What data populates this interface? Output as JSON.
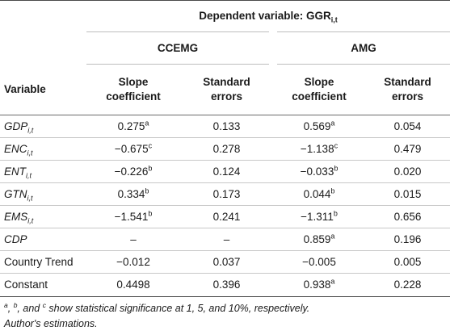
{
  "header": {
    "dependent_label": "Dependent variable: GGR",
    "dependent_sub": "i,t",
    "methods": [
      "CCEMG",
      "AMG"
    ],
    "variable_label": "Variable",
    "col_slope": [
      "Slope",
      "coefficient"
    ],
    "col_se": [
      "Standard",
      "errors"
    ]
  },
  "rows": [
    {
      "name": "GDP",
      "sub": "i,t",
      "italic": true,
      "cc_slope": "0.275",
      "cc_slope_sup": "a",
      "cc_se": "0.133",
      "amg_slope": "0.569",
      "amg_slope_sup": "a",
      "amg_se": "0.054"
    },
    {
      "name": "ENC",
      "sub": "i,t",
      "italic": true,
      "cc_slope": "−0.675",
      "cc_slope_sup": "c",
      "cc_se": "0.278",
      "amg_slope": "−1.138",
      "amg_slope_sup": "c",
      "amg_se": "0.479"
    },
    {
      "name": "ENT",
      "sub": "i,t",
      "italic": true,
      "cc_slope": "−0.226",
      "cc_slope_sup": "b",
      "cc_se": "0.124",
      "amg_slope": "−0.033",
      "amg_slope_sup": "b",
      "amg_se": "0.020"
    },
    {
      "name": "GTN",
      "sub": "i,t",
      "italic": true,
      "cc_slope": "0.334",
      "cc_slope_sup": "b",
      "cc_se": "0.173",
      "amg_slope": "0.044",
      "amg_slope_sup": "b",
      "amg_se": "0.015"
    },
    {
      "name": "EMS",
      "sub": "i,t",
      "italic": true,
      "cc_slope": "−1.541",
      "cc_slope_sup": "b",
      "cc_se": "0.241",
      "amg_slope": "−1.311",
      "amg_slope_sup": "b",
      "amg_se": "0.656"
    },
    {
      "name": "CDP",
      "sub": "",
      "italic": true,
      "cc_slope": "–",
      "cc_slope_sup": "",
      "cc_se": "–",
      "amg_slope": "0.859",
      "amg_slope_sup": "a",
      "amg_se": "0.196"
    },
    {
      "name": "Country Trend",
      "sub": "",
      "italic": false,
      "cc_slope": "−0.012",
      "cc_slope_sup": "",
      "cc_se": "0.037",
      "amg_slope": "−0.005",
      "amg_slope_sup": "",
      "amg_se": "0.005"
    },
    {
      "name": "Constant",
      "sub": "",
      "italic": false,
      "cc_slope": "0.4498",
      "cc_slope_sup": "",
      "cc_se": "0.396",
      "amg_slope": "0.938",
      "amg_slope_sup": "a",
      "amg_se": "0.228"
    }
  ],
  "notes": {
    "sig_a": "a",
    "sig_sep1": ", ",
    "sig_b": "b",
    "sig_sep2": ", and ",
    "sig_c": "c",
    "sig_text": " show statistical significance at 1, 5, and 10%, respectively.",
    "source": "Author's estimations."
  }
}
